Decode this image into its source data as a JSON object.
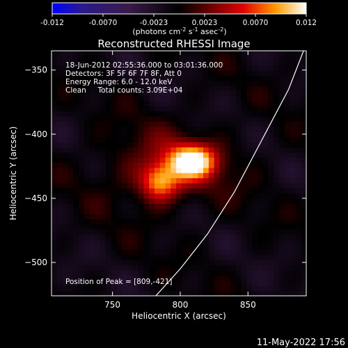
{
  "chart_data": {
    "type": "heatmap",
    "title": "Reconstructed RHESSI Image",
    "xlabel": "Heliocentric X (arcsec)",
    "ylabel": "Heliocentric Y (arcsec)",
    "xlim": [
      705,
      893
    ],
    "ylim": [
      -526,
      -335
    ],
    "xticks": [
      750,
      800,
      850
    ],
    "yticks": [
      -350,
      -400,
      -450,
      -500
    ],
    "colormap": "hot",
    "colorbar": {
      "range": [
        -0.012,
        0.012
      ],
      "ticks": [
        "-0.012",
        "-0.0070",
        "-0.0023",
        "0.0023",
        "0.0070",
        "0.012"
      ],
      "unit_label": "(photons cm",
      "unit_exp1": "-2",
      "unit_mid": " s",
      "unit_exp2": "-1",
      "unit_mid2": " asec",
      "unit_exp3": "-2",
      "unit_end": ")"
    },
    "annotations": [
      "18-Jun-2012 02:55:36.000 to 03:01:36.000",
      "Detectors: 3F 5F 6F 7F 8F, Att 0",
      "Energy Range: 6.0 - 12.0 keV",
      "Clean     Total counts: 3.09E+04"
    ],
    "peak_label": "Position of Peak = [809,-421]",
    "peak": [
      809,
      -421
    ],
    "sources": [
      {
        "x": 809,
        "y": -421,
        "sigma_x": 12,
        "sigma_y": 9,
        "amp": 0.012
      },
      {
        "x": 785,
        "y": -437,
        "sigma_x": 10,
        "sigma_y": 10,
        "amp": 0.0085
      },
      {
        "x": 790,
        "y": -425,
        "sigma_x": 35,
        "sigma_y": 22,
        "amp": 0.0035
      }
    ],
    "limb_curve": [
      [
        891,
        -335
      ],
      [
        880,
        -365
      ],
      [
        860,
        -405
      ],
      [
        840,
        -445
      ],
      [
        820,
        -478
      ],
      [
        800,
        -505
      ],
      [
        782,
        -526
      ]
    ]
  },
  "footer_date": "11-May-2022 17:56"
}
